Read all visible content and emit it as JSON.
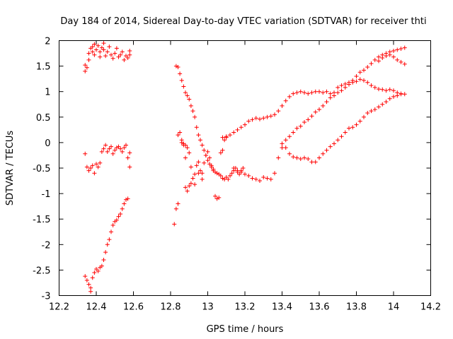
{
  "chart_data": {
    "type": "scatter",
    "title": "Day 184 of 2014, Sidereal Day-to-day VTEC variation (SDTVAR) for receiver thti",
    "xlabel": "GPS time / hours",
    "ylabel": "SDTVAR / TECUs",
    "xlim": [
      12.2,
      14.2
    ],
    "ylim": [
      -3,
      2
    ],
    "xticks": [
      "12.2",
      "12.4",
      "12.6",
      "12.8",
      "13",
      "13.2",
      "13.4",
      "13.6",
      "13.8",
      "14",
      "14.2"
    ],
    "yticks": [
      "-3",
      "-2.5",
      "-2",
      "-1.5",
      "-1",
      "-0.5",
      "0",
      "0.5",
      "1",
      "1.5",
      "2"
    ],
    "grid": false,
    "marker": "+",
    "marker_color": "#ff0000",
    "series": [
      {
        "name": "upper-left cluster",
        "points": [
          [
            12.34,
            1.4
          ],
          [
            12.34,
            1.52
          ],
          [
            12.35,
            1.47
          ],
          [
            12.36,
            1.62
          ],
          [
            12.36,
            1.75
          ],
          [
            12.37,
            1.85
          ],
          [
            12.38,
            1.78
          ],
          [
            12.38,
            1.88
          ],
          [
            12.39,
            1.93
          ],
          [
            12.39,
            1.72
          ],
          [
            12.4,
            1.82
          ],
          [
            12.41,
            1.9
          ],
          [
            12.42,
            1.68
          ],
          [
            12.42,
            1.78
          ],
          [
            12.43,
            1.86
          ],
          [
            12.44,
            1.95
          ],
          [
            12.44,
            1.82
          ],
          [
            12.45,
            1.7
          ],
          [
            12.46,
            1.78
          ],
          [
            12.47,
            1.88
          ],
          [
            12.48,
            1.72
          ],
          [
            12.49,
            1.65
          ],
          [
            12.5,
            1.75
          ],
          [
            12.51,
            1.85
          ],
          [
            12.52,
            1.68
          ],
          [
            12.53,
            1.72
          ],
          [
            12.54,
            1.78
          ],
          [
            12.55,
            1.62
          ],
          [
            12.56,
            1.7
          ],
          [
            12.57,
            1.66
          ],
          [
            12.58,
            1.72
          ],
          [
            12.58,
            1.8
          ]
        ]
      },
      {
        "name": "middle-left cluster",
        "points": [
          [
            12.34,
            -0.22
          ],
          [
            12.35,
            -0.48
          ],
          [
            12.36,
            -0.55
          ],
          [
            12.37,
            -0.5
          ],
          [
            12.38,
            -0.45
          ],
          [
            12.39,
            -0.6
          ],
          [
            12.4,
            -0.42
          ],
          [
            12.41,
            -0.48
          ],
          [
            12.42,
            -0.4
          ],
          [
            12.43,
            -0.18
          ],
          [
            12.44,
            -0.12
          ],
          [
            12.45,
            -0.05
          ],
          [
            12.46,
            -0.18
          ],
          [
            12.47,
            -0.12
          ],
          [
            12.48,
            -0.08
          ],
          [
            12.49,
            -0.22
          ],
          [
            12.5,
            -0.15
          ],
          [
            12.51,
            -0.1
          ],
          [
            12.52,
            -0.08
          ],
          [
            12.53,
            -0.12
          ],
          [
            12.54,
            -0.18
          ],
          [
            12.55,
            -0.1
          ],
          [
            12.56,
            -0.05
          ],
          [
            12.57,
            -0.3
          ],
          [
            12.58,
            -0.2
          ],
          [
            12.58,
            -0.48
          ]
        ]
      },
      {
        "name": "lower-left rising trace",
        "points": [
          [
            12.34,
            -2.62
          ],
          [
            12.35,
            -2.7
          ],
          [
            12.36,
            -2.78
          ],
          [
            12.37,
            -2.85
          ],
          [
            12.37,
            -2.92
          ],
          [
            12.38,
            -2.65
          ],
          [
            12.39,
            -2.55
          ],
          [
            12.4,
            -2.48
          ],
          [
            12.41,
            -2.52
          ],
          [
            12.42,
            -2.45
          ],
          [
            12.43,
            -2.42
          ],
          [
            12.44,
            -2.3
          ],
          [
            12.45,
            -2.15
          ],
          [
            12.46,
            -2.0
          ],
          [
            12.47,
            -1.9
          ],
          [
            12.48,
            -1.75
          ],
          [
            12.49,
            -1.62
          ],
          [
            12.5,
            -1.55
          ],
          [
            12.51,
            -1.52
          ],
          [
            12.52,
            -1.45
          ],
          [
            12.53,
            -1.4
          ],
          [
            12.54,
            -1.3
          ],
          [
            12.55,
            -1.2
          ],
          [
            12.56,
            -1.12
          ],
          [
            12.57,
            -1.1
          ]
        ]
      },
      {
        "name": "descending from 1.5",
        "points": [
          [
            12.83,
            1.5
          ],
          [
            12.84,
            1.48
          ],
          [
            12.85,
            1.35
          ],
          [
            12.86,
            1.22
          ],
          [
            12.87,
            1.1
          ],
          [
            12.88,
            0.98
          ],
          [
            12.89,
            0.92
          ],
          [
            12.9,
            0.85
          ],
          [
            12.91,
            0.72
          ],
          [
            12.92,
            0.62
          ],
          [
            12.93,
            0.5
          ],
          [
            12.94,
            0.3
          ],
          [
            12.95,
            0.15
          ],
          [
            12.96,
            0.05
          ],
          [
            12.97,
            -0.05
          ],
          [
            12.98,
            -0.15
          ],
          [
            12.99,
            -0.25
          ],
          [
            13.0,
            -0.35
          ],
          [
            13.01,
            -0.42
          ],
          [
            13.02,
            -0.48
          ],
          [
            13.03,
            -0.52
          ],
          [
            13.04,
            -0.58
          ],
          [
            13.05,
            -0.6
          ],
          [
            13.06,
            -0.62
          ],
          [
            13.07,
            -0.65
          ],
          [
            13.08,
            -0.7
          ],
          [
            13.09,
            -0.72
          ],
          [
            13.1,
            -0.68
          ],
          [
            13.11,
            -0.72
          ],
          [
            13.12,
            -0.65
          ],
          [
            13.13,
            -0.6
          ],
          [
            13.14,
            -0.55
          ],
          [
            13.15,
            -0.5
          ],
          [
            13.16,
            -0.58
          ],
          [
            13.17,
            -0.62
          ],
          [
            13.18,
            -0.55
          ],
          [
            13.19,
            -0.5
          ]
        ]
      },
      {
        "name": "central tangle",
        "points": [
          [
            12.82,
            -1.6
          ],
          [
            12.83,
            -1.3
          ],
          [
            12.84,
            -1.2
          ],
          [
            12.84,
            0.15
          ],
          [
            12.85,
            0.2
          ],
          [
            12.86,
            0.05
          ],
          [
            12.87,
            -0.05
          ],
          [
            12.88,
            -0.3
          ],
          [
            12.88,
            -0.88
          ],
          [
            12.89,
            -0.95
          ],
          [
            12.9,
            -0.85
          ],
          [
            12.91,
            -0.8
          ],
          [
            12.92,
            -0.7
          ],
          [
            12.93,
            -0.62
          ],
          [
            12.94,
            -0.45
          ],
          [
            12.95,
            -0.38
          ],
          [
            12.96,
            -0.55
          ],
          [
            12.97,
            -0.6
          ],
          [
            12.98,
            -0.4
          ],
          [
            12.99,
            -0.25
          ],
          [
            13.0,
            -0.18
          ],
          [
            13.01,
            -0.3
          ],
          [
            13.02,
            -0.45
          ],
          [
            13.03,
            -0.55
          ],
          [
            13.04,
            -1.05
          ],
          [
            13.05,
            -1.1
          ],
          [
            13.06,
            -1.08
          ],
          [
            13.07,
            -0.2
          ],
          [
            13.08,
            -0.15
          ],
          [
            13.09,
            0.05
          ],
          [
            13.1,
            0.1
          ],
          [
            12.86,
            0.0
          ],
          [
            12.87,
            -0.02
          ],
          [
            12.88,
            -0.05
          ],
          [
            12.89,
            -0.1
          ],
          [
            12.9,
            -0.2
          ],
          [
            12.91,
            -0.48
          ],
          [
            12.93,
            -0.82
          ],
          [
            12.95,
            -0.6
          ],
          [
            12.97,
            -0.72
          ]
        ]
      },
      {
        "name": "middle rising trace",
        "points": [
          [
            13.08,
            0.1
          ],
          [
            13.1,
            0.12
          ],
          [
            13.12,
            0.15
          ],
          [
            13.14,
            0.2
          ],
          [
            13.16,
            0.25
          ],
          [
            13.18,
            0.3
          ],
          [
            13.2,
            0.35
          ],
          [
            13.22,
            0.42
          ],
          [
            13.24,
            0.45
          ],
          [
            13.26,
            0.48
          ],
          [
            13.28,
            0.46
          ],
          [
            13.3,
            0.48
          ],
          [
            13.32,
            0.5
          ],
          [
            13.34,
            0.52
          ],
          [
            13.36,
            0.55
          ],
          [
            13.38,
            0.62
          ],
          [
            13.4,
            0.72
          ],
          [
            13.42,
            0.82
          ],
          [
            13.44,
            0.9
          ],
          [
            13.46,
            0.96
          ],
          [
            13.48,
            0.98
          ],
          [
            13.5,
            1.0
          ],
          [
            13.52,
            0.98
          ],
          [
            13.54,
            0.96
          ],
          [
            13.56,
            0.98
          ],
          [
            13.58,
            1.0
          ],
          [
            13.6,
            1.0
          ],
          [
            13.62,
            0.98
          ],
          [
            13.64,
            1.0
          ],
          [
            13.66,
            0.96
          ],
          [
            13.68,
            0.92
          ],
          [
            13.7,
            0.98
          ],
          [
            13.72,
            1.02
          ],
          [
            13.74,
            1.08
          ],
          [
            13.76,
            1.14
          ],
          [
            13.78,
            1.18
          ],
          [
            13.8,
            1.2
          ],
          [
            13.82,
            1.24
          ],
          [
            13.84,
            1.22
          ],
          [
            13.86,
            1.18
          ],
          [
            13.88,
            1.12
          ],
          [
            13.9,
            1.08
          ],
          [
            13.92,
            1.05
          ],
          [
            13.94,
            1.04
          ],
          [
            13.96,
            1.02
          ],
          [
            13.98,
            1.04
          ],
          [
            14.0,
            1.02
          ],
          [
            14.02,
            0.98
          ],
          [
            14.04,
            0.96
          ],
          [
            14.06,
            0.95
          ]
        ]
      },
      {
        "name": "lower rising trace",
        "points": [
          [
            13.14,
            -0.5
          ],
          [
            13.16,
            -0.55
          ],
          [
            13.18,
            -0.58
          ],
          [
            13.2,
            -0.62
          ],
          [
            13.22,
            -0.65
          ],
          [
            13.24,
            -0.7
          ],
          [
            13.26,
            -0.72
          ],
          [
            13.28,
            -0.75
          ],
          [
            13.3,
            -0.68
          ],
          [
            13.32,
            -0.7
          ],
          [
            13.34,
            -0.72
          ],
          [
            13.36,
            -0.6
          ],
          [
            13.38,
            -0.3
          ],
          [
            13.4,
            -0.1
          ],
          [
            13.42,
            0.05
          ],
          [
            13.44,
            0.12
          ],
          [
            13.46,
            0.2
          ],
          [
            13.48,
            0.28
          ],
          [
            13.5,
            0.32
          ],
          [
            13.52,
            0.4
          ],
          [
            13.54,
            0.45
          ],
          [
            13.56,
            0.52
          ],
          [
            13.58,
            0.6
          ],
          [
            13.6,
            0.65
          ],
          [
            13.62,
            0.72
          ],
          [
            13.64,
            0.8
          ],
          [
            13.66,
            0.88
          ],
          [
            13.68,
            0.98
          ],
          [
            13.7,
            1.08
          ],
          [
            13.72,
            1.12
          ],
          [
            13.74,
            1.15
          ],
          [
            13.76,
            1.18
          ],
          [
            13.78,
            1.22
          ],
          [
            13.8,
            1.3
          ],
          [
            13.82,
            1.38
          ],
          [
            13.84,
            1.42
          ],
          [
            13.86,
            1.48
          ],
          [
            13.88,
            1.55
          ],
          [
            13.9,
            1.62
          ],
          [
            13.92,
            1.68
          ],
          [
            13.94,
            1.72
          ],
          [
            13.96,
            1.75
          ],
          [
            13.98,
            1.78
          ],
          [
            14.0,
            1.8
          ],
          [
            14.02,
            1.82
          ],
          [
            14.04,
            1.84
          ],
          [
            14.06,
            1.86
          ]
        ]
      },
      {
        "name": "bottom rising trace",
        "points": [
          [
            13.4,
            -0.02
          ],
          [
            13.42,
            -0.1
          ],
          [
            13.44,
            -0.22
          ],
          [
            13.46,
            -0.28
          ],
          [
            13.48,
            -0.3
          ],
          [
            13.5,
            -0.32
          ],
          [
            13.52,
            -0.3
          ],
          [
            13.54,
            -0.32
          ],
          [
            13.56,
            -0.38
          ],
          [
            13.58,
            -0.38
          ],
          [
            13.6,
            -0.3
          ],
          [
            13.62,
            -0.22
          ],
          [
            13.64,
            -0.15
          ],
          [
            13.66,
            -0.08
          ],
          [
            13.68,
            -0.02
          ],
          [
            13.7,
            0.05
          ],
          [
            13.72,
            0.12
          ],
          [
            13.74,
            0.2
          ],
          [
            13.76,
            0.28
          ],
          [
            13.78,
            0.3
          ],
          [
            13.8,
            0.35
          ],
          [
            13.82,
            0.42
          ],
          [
            13.84,
            0.5
          ],
          [
            13.86,
            0.58
          ],
          [
            13.88,
            0.62
          ],
          [
            13.9,
            0.65
          ],
          [
            13.92,
            0.7
          ],
          [
            13.94,
            0.75
          ],
          [
            13.96,
            0.8
          ],
          [
            13.98,
            0.86
          ],
          [
            14.0,
            0.9
          ],
          [
            14.02,
            0.92
          ],
          [
            14.04,
            0.95
          ]
        ]
      },
      {
        "name": "descending right trace",
        "points": [
          [
            13.92,
            1.6
          ],
          [
            13.94,
            1.66
          ],
          [
            13.96,
            1.7
          ],
          [
            13.98,
            1.72
          ],
          [
            14.0,
            1.68
          ],
          [
            14.02,
            1.62
          ],
          [
            14.04,
            1.58
          ],
          [
            14.06,
            1.54
          ]
        ]
      }
    ]
  }
}
